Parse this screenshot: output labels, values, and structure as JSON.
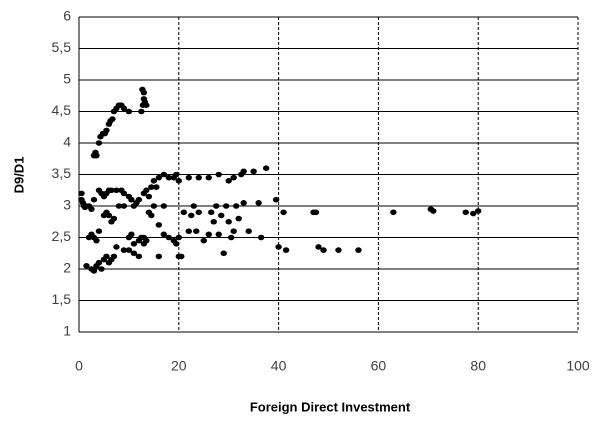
{
  "chart_data": {
    "type": "scatter",
    "x_label": "Foreign Direct Investment",
    "y_label": "D9/D1",
    "color": "#000000",
    "xlim": [
      0,
      100
    ],
    "xticks": [
      0,
      20,
      40,
      60,
      80,
      100
    ],
    "ylim": [
      1,
      6
    ],
    "yticks": [
      1,
      {
        "value": 1.5,
        "label": "1,5"
      },
      2,
      {
        "value": 2.5,
        "label": "2,5"
      },
      3,
      {
        "value": 3.5,
        "label": "3,5"
      },
      4,
      {
        "value": 4.5,
        "label": "4,5"
      },
      5,
      {
        "value": 5.5,
        "label": "5,5"
      },
      6
    ],
    "grid": true,
    "x": [
      3,
      3.3,
      3.5,
      4,
      4.3,
      4.8,
      5.2,
      5.5,
      6,
      6.3,
      6.7,
      7,
      7.5,
      8,
      8.5,
      9,
      10,
      12.5,
      12.7,
      13,
      13,
      13.2,
      12.8,
      13.5,
      0.5,
      0.5,
      0.8,
      1,
      1.2,
      1.5,
      2,
      2.5,
      3,
      4,
      4.5,
      5,
      5.5,
      6,
      6.5,
      7.5,
      8.5,
      9,
      10,
      10.5,
      11,
      11.5,
      12,
      13,
      13.5,
      14,
      14.5,
      15,
      15.5,
      16,
      17,
      18,
      19,
      19.5,
      20,
      22,
      24,
      26,
      28,
      30,
      31,
      2,
      2.5,
      3,
      3.5,
      4,
      5,
      5.5,
      6,
      6.5,
      7,
      8,
      9,
      10,
      10.5,
      11,
      12,
      12.5,
      13,
      13.5,
      14,
      14.5,
      15,
      16,
      17,
      18,
      19,
      19.5,
      20,
      20.5,
      21,
      22,
      22.5,
      23,
      23.5,
      24,
      25,
      26,
      26.5,
      27,
      27.5,
      28,
      28.5,
      29,
      29.5,
      30,
      30.5,
      31,
      31.5,
      32,
      33,
      34,
      36,
      36.5,
      1.5,
      2.5,
      3,
      3.5,
      4,
      4.5,
      5,
      5.5,
      6,
      6.5,
      7,
      7.5,
      9,
      10,
      11,
      12,
      13,
      16,
      17,
      20,
      40,
      41.5,
      47,
      47.5,
      48,
      49,
      52,
      56,
      63,
      70.5,
      71,
      77.5,
      79,
      80,
      41,
      39.5,
      37.5,
      35,
      33,
      32.5
    ],
    "values": [
      3.8,
      3.85,
      3.8,
      4.0,
      4.1,
      4.15,
      4.15,
      4.2,
      4.3,
      4.35,
      4.38,
      4.5,
      4.55,
      4.6,
      4.6,
      4.55,
      4.5,
      4.5,
      4.85,
      4.8,
      4.7,
      4.65,
      4.6,
      4.6,
      3.2,
      3.1,
      3.05,
      3.0,
      2.98,
      3.0,
      3.0,
      2.95,
      3.1,
      3.25,
      3.2,
      3.15,
      3.2,
      3.25,
      3.25,
      3.25,
      3.25,
      3.2,
      3.15,
      3.1,
      3.0,
      3.05,
      3.1,
      3.2,
      3.25,
      3.15,
      3.3,
      3.4,
      3.3,
      3.45,
      3.5,
      3.45,
      3.45,
      3.5,
      3.4,
      3.45,
      3.45,
      3.45,
      3.5,
      3.4,
      3.45,
      2.5,
      2.55,
      2.5,
      2.45,
      2.6,
      2.85,
      2.9,
      2.85,
      2.75,
      2.8,
      3.0,
      3.0,
      2.5,
      2.55,
      2.4,
      2.45,
      2.5,
      2.5,
      2.45,
      2.9,
      2.85,
      3.0,
      2.7,
      3.0,
      2.5,
      2.45,
      2.4,
      2.5,
      2.2,
      2.9,
      2.6,
      2.85,
      3.0,
      2.6,
      2.9,
      2.45,
      2.55,
      2.9,
      2.75,
      3.0,
      2.55,
      2.85,
      2.25,
      3.0,
      2.75,
      2.5,
      2.6,
      3.0,
      2.8,
      3.05,
      2.6,
      3.05,
      2.5,
      2.05,
      2.0,
      1.97,
      2.05,
      2.1,
      2.0,
      2.15,
      2.2,
      2.1,
      2.15,
      2.2,
      2.35,
      2.3,
      2.3,
      2.25,
      2.2,
      2.4,
      2.2,
      2.55,
      2.2,
      2.35,
      2.3,
      2.9,
      2.9,
      2.35,
      2.3,
      2.3,
      2.3,
      2.9,
      2.95,
      2.92,
      2.9,
      2.88,
      2.92,
      2.9,
      3.1,
      3.6,
      3.55,
      3.55,
      3.5
    ]
  }
}
